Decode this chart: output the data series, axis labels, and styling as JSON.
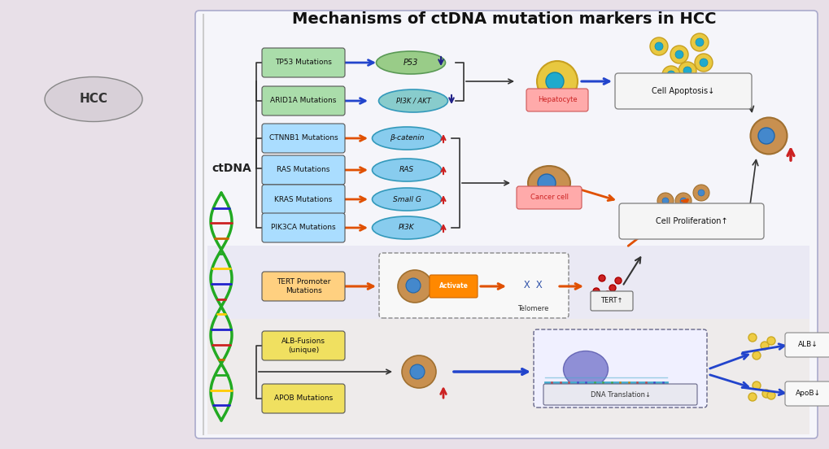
{
  "title": "Mechanisms of ctDNA mutation markers in HCC",
  "title_fontsize": 14,
  "bg_outer": "#e8e0e8",
  "bg_panel": "#f0eff5",
  "bg_white_section": "#ffffff",
  "bg_gray_section": "#dcdce8",
  "label_green": "#5cb85c",
  "label_blue": "#5bc0de",
  "label_yellow": "#f0e060",
  "label_orange": "#f0a030",
  "label_pink": "#f08080",
  "arrow_blue": "#2244cc",
  "arrow_orange": "#e05000",
  "arrow_black": "#222222",
  "mutations_group1": [
    "TP53 Mutations",
    "ARID1A Mutations"
  ],
  "mutations_group2": [
    "CTNNB1 Mutations",
    "RAS Mutations",
    "KRAS Mutations",
    "PIK3CA Mutations"
  ],
  "mutations_group3": [
    "TERT Promoter\nMutations"
  ],
  "mutations_group4": [
    "ALB-Fusions\n(unique)",
    "APOB Mutations"
  ],
  "proteins_group1": [
    "P53",
    "PI3K / AKT"
  ],
  "proteins_group2": [
    "β-catenin",
    "RAS",
    "Small G",
    "PI3K"
  ],
  "outcome_top": "Cell Apoptosis↓",
  "outcome_mid": "Cell Proliferation↑",
  "outcome_tert": "TERT↑",
  "outcome_alb": "ALB↓",
  "outcome_apob": "ApoB↓",
  "cell_label1": "Hepatocyte",
  "cell_label2": "Cancer cell",
  "cell_label3": "DNA Translation↓",
  "telomere_label": "Telomere",
  "activate_label": "Activate",
  "ctdna_label": "ctDNA",
  "hcc_label": "HCC"
}
